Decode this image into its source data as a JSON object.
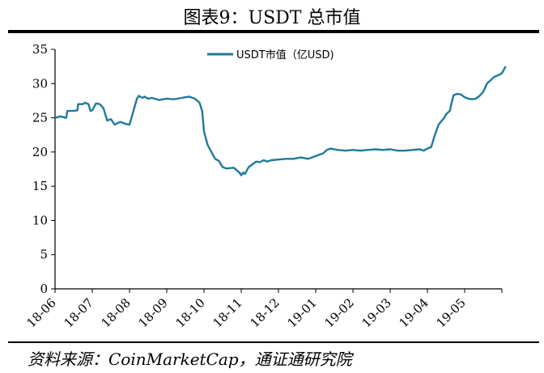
{
  "header": {
    "title": "图表9：USDT 总市值"
  },
  "footer": {
    "source": "资料来源：CoinMarketCap，通证通研究院"
  },
  "chart_data": {
    "type": "line",
    "ylim": [
      0,
      35
    ],
    "yticks": [
      0,
      5,
      10,
      15,
      20,
      25,
      30,
      35
    ],
    "categories": [
      "18-06",
      "18-07",
      "18-08",
      "18-09",
      "18-10",
      "18-11",
      "18-12",
      "19-01",
      "19-02",
      "19-03",
      "19-04",
      "19-05"
    ],
    "legend": {
      "position": "top-center"
    },
    "grid": false,
    "colors": {
      "line": "#1f7a9c"
    },
    "series": [
      {
        "name": "USDT市值（亿USD)",
        "x": [
          0,
          0.15,
          0.3,
          0.33,
          0.5,
          0.6,
          0.62,
          0.75,
          0.8,
          0.9,
          0.95,
          1.0,
          1.1,
          1.2,
          1.3,
          1.4,
          1.5,
          1.6,
          1.75,
          1.9,
          2.0,
          2.2,
          2.25,
          2.35,
          2.4,
          2.5,
          2.6,
          2.8,
          3.0,
          3.2,
          3.4,
          3.5,
          3.6,
          3.75,
          3.82,
          3.88,
          3.95,
          4.0,
          4.1,
          4.2,
          4.3,
          4.4,
          4.5,
          4.6,
          4.8,
          4.95,
          5.0,
          5.05,
          5.1,
          5.15,
          5.2,
          5.3,
          5.4,
          5.5,
          5.6,
          5.7,
          5.8,
          6.0,
          6.2,
          6.4,
          6.6,
          6.8,
          7.0,
          7.2,
          7.3,
          7.4,
          7.5,
          7.6,
          7.8,
          8.0,
          8.2,
          8.4,
          8.6,
          8.8,
          9.0,
          9.2,
          9.4,
          9.6,
          9.8,
          9.9,
          10.0,
          10.1,
          10.2,
          10.3,
          10.45,
          10.5,
          10.6,
          10.7,
          10.8,
          10.9,
          11.0,
          11.1,
          11.2,
          11.3,
          11.4,
          11.5,
          11.6,
          11.8,
          11.9,
          12.0,
          12.1
        ],
        "values": [
          25.0,
          25.2,
          25.0,
          26.0,
          26.0,
          26.1,
          27.0,
          27.0,
          27.2,
          27.0,
          26.0,
          26.1,
          27.1,
          27.0,
          26.4,
          24.6,
          24.8,
          24.0,
          24.4,
          24.1,
          24.0,
          27.8,
          28.2,
          27.9,
          28.1,
          27.8,
          27.9,
          27.6,
          27.8,
          27.7,
          27.9,
          28.0,
          28.1,
          27.8,
          27.5,
          27.2,
          26.0,
          23.0,
          21.0,
          20.0,
          19.0,
          18.7,
          17.8,
          17.6,
          17.7,
          17.0,
          16.6,
          17.0,
          16.8,
          17.3,
          17.8,
          18.2,
          18.6,
          18.5,
          18.8,
          18.6,
          18.8,
          18.9,
          19.0,
          19.0,
          19.2,
          19.0,
          19.4,
          19.8,
          20.3,
          20.5,
          20.4,
          20.3,
          20.2,
          20.3,
          20.2,
          20.3,
          20.4,
          20.3,
          20.4,
          20.2,
          20.2,
          20.3,
          20.4,
          20.2,
          20.5,
          20.7,
          22.5,
          24.0,
          25.0,
          25.5,
          26.0,
          28.3,
          28.5,
          28.4,
          28.0,
          27.8,
          27.7,
          27.8,
          28.2,
          28.8,
          30.0,
          31.0,
          31.2,
          31.5,
          32.5
        ]
      }
    ]
  }
}
